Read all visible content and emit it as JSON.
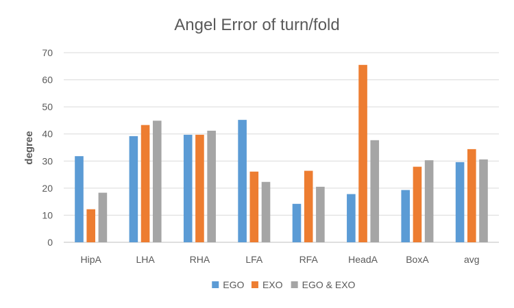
{
  "chart_data": {
    "type": "bar",
    "title": "Angel Error of turn/fold",
    "xlabel": "",
    "ylabel": "degree",
    "ylim": [
      0,
      70
    ],
    "yticks": [
      0,
      10,
      20,
      30,
      40,
      50,
      60,
      70
    ],
    "grid": true,
    "legend_position": "bottom",
    "categories": [
      "HipA",
      "LHA",
      "RHA",
      "LFA",
      "RFA",
      "HeadA",
      "BoxA",
      "avg"
    ],
    "series": [
      {
        "name": "EGO",
        "color": "#5b9bd5",
        "values": [
          31.8,
          39.2,
          39.7,
          45.2,
          14.2,
          17.8,
          19.3,
          29.6
        ]
      },
      {
        "name": "EXO",
        "color": "#ed7d31",
        "values": [
          12.2,
          43.3,
          39.7,
          26.1,
          26.4,
          65.5,
          27.9,
          34.4
        ]
      },
      {
        "name": "EGO & EXO",
        "color": "#a5a5a5",
        "values": [
          18.3,
          44.9,
          41.2,
          22.3,
          20.5,
          37.7,
          30.3,
          30.6
        ]
      }
    ]
  }
}
